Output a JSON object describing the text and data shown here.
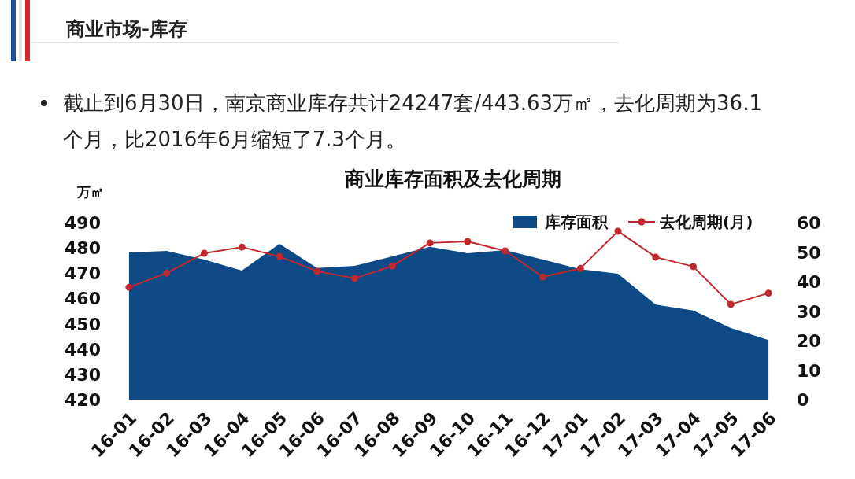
{
  "chart_data": {
    "type": "area",
    "title": "商业库存面积及去化周期",
    "ylabel": "万㎡",
    "annotations": [
      "商业市场-库存",
      "截止到6月30日，南京商业库存共计24247套/443.63万㎡，去化周期为36.1个月，比2016年6月缩短了7.3个月。"
    ],
    "categories": [
      "16-01",
      "16-02",
      "16-03",
      "16-04",
      "16-05",
      "16-06",
      "16-07",
      "16-08",
      "16-09",
      "16-10",
      "16-11",
      "16-12",
      "17-01",
      "17-02",
      "17-03",
      "17-04",
      "17-05",
      "17-06"
    ],
    "series": [
      {
        "name": "库存面积",
        "color": "#0e4a85",
        "values": [
          478.2,
          478.8,
          475.4,
          471.0,
          481.6,
          472.0,
          472.9,
          476.6,
          480.4,
          477.9,
          479.1,
          475.4,
          471.6,
          469.8,
          457.6,
          455.2,
          448.3,
          443.6
        ]
      },
      {
        "name": "去化周期(月)",
        "type": "line",
        "axis": "y2",
        "marker": "circle",
        "color": "#c0282d",
        "values": [
          38.1,
          42.9,
          49.6,
          51.7,
          48.5,
          43.5,
          41.1,
          45.3,
          53.1,
          53.6,
          50.4,
          41.6,
          44.5,
          57.1,
          48.3,
          45.1,
          32.3,
          36.1
        ]
      }
    ],
    "ylim": [
      420,
      490
    ],
    "yticks": [
      420,
      430,
      440,
      450,
      460,
      470,
      480,
      490
    ],
    "y2lim": [
      0,
      60
    ],
    "y2ticks": [
      0,
      10,
      20,
      30,
      40,
      50,
      60
    ],
    "legend": "top right",
    "line_style": "solid",
    "grid": false
  }
}
